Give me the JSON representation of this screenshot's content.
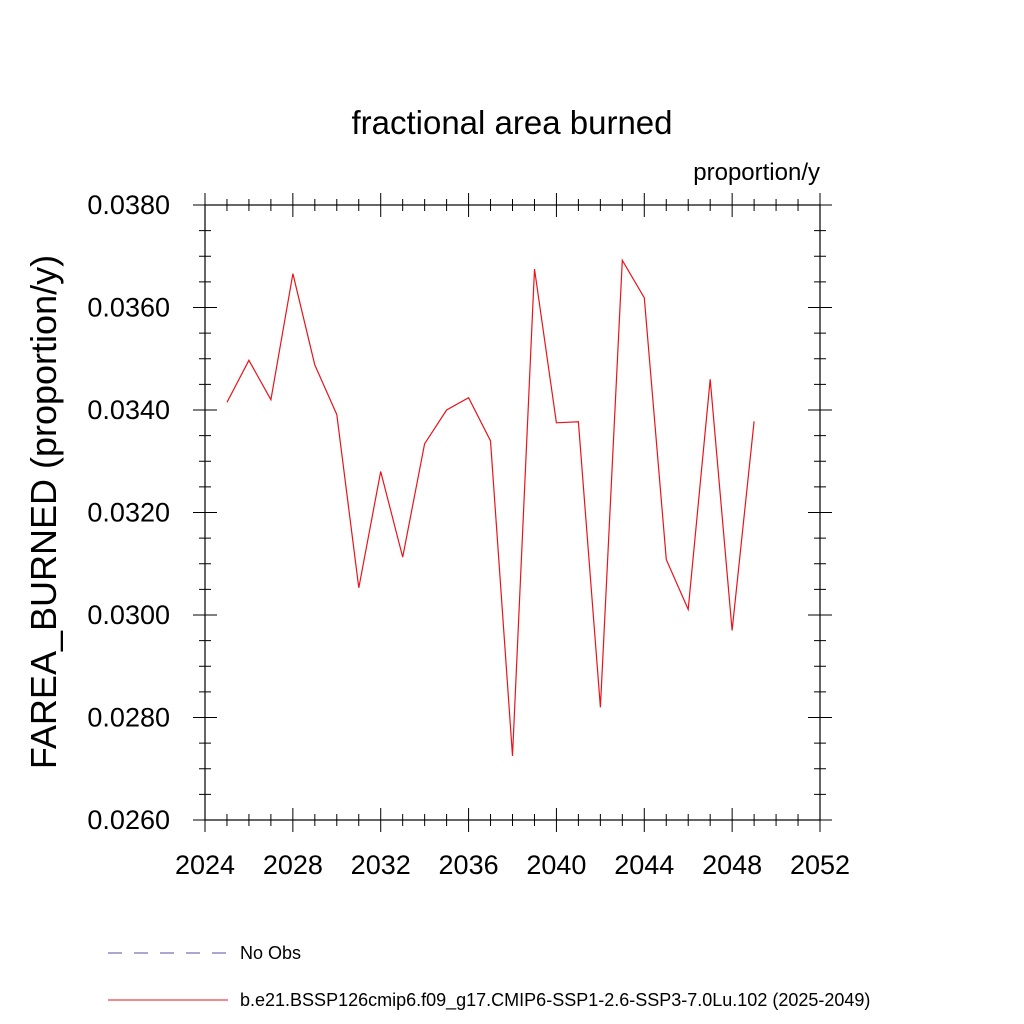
{
  "chart_data": {
    "type": "line",
    "title": "fractional area burned",
    "units_label": "proportion/y",
    "ylabel": "FAREA_BURNED  (proportion/y)",
    "xlabel": "",
    "xlim": [
      2024,
      2052
    ],
    "ylim": [
      0.026,
      0.038
    ],
    "xticks": [
      2024,
      2028,
      2032,
      2036,
      2040,
      2044,
      2048,
      2052
    ],
    "xtick_labels": [
      "2024",
      "2028",
      "2032",
      "2036",
      "2040",
      "2044",
      "2048",
      "2052"
    ],
    "yticks": [
      0.026,
      0.028,
      0.03,
      0.032,
      0.034,
      0.036,
      0.038
    ],
    "ytick_labels": [
      "0.0260",
      "0.0280",
      "0.0300",
      "0.0320",
      "0.0340",
      "0.0360",
      "0.0380"
    ],
    "grid": false,
    "legend_position": "bottom",
    "series": [
      {
        "name": "No Obs",
        "color": "#5a4fa3",
        "dash": "dashed",
        "x": [],
        "values": []
      },
      {
        "name": "b.e21.BSSP126cmip6.f09_g17.CMIP6-SSP1-2.6-SSP3-7.0Lu.102 (2025-2049)",
        "color": "#e8141a",
        "dash": "solid",
        "x": [
          2025,
          2026,
          2027,
          2028,
          2029,
          2030,
          2031,
          2032,
          2033,
          2034,
          2035,
          2036,
          2037,
          2038,
          2039,
          2040,
          2041,
          2042,
          2043,
          2044,
          2045,
          2046,
          2047,
          2048,
          2049
        ],
        "values": [
          0.03415,
          0.03497,
          0.0342,
          0.03666,
          0.03488,
          0.03391,
          0.03053,
          0.0328,
          0.03113,
          0.03334,
          0.034,
          0.03424,
          0.0334,
          0.02725,
          0.03675,
          0.03375,
          0.03377,
          0.0282,
          0.03692,
          0.03619,
          0.03108,
          0.03011,
          0.0346,
          0.0297,
          0.03378
        ]
      }
    ]
  }
}
